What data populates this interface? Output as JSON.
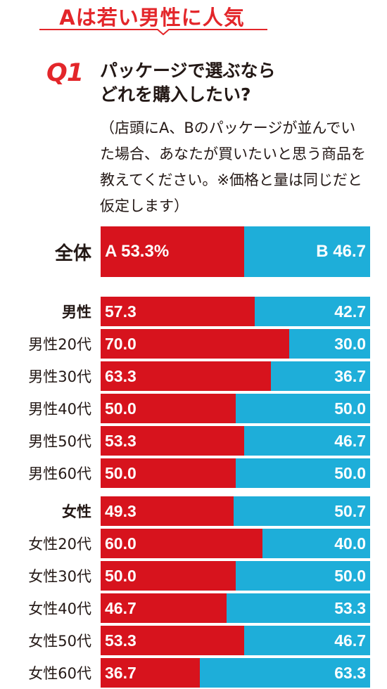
{
  "headline": "Aは若い男性に人気",
  "question": {
    "number": "Q1",
    "line1": "パッケージで選ぶなら",
    "line2": "どれを購入したい?",
    "note_lines": [
      "（店頭にA、Bのパッケージが並んでい",
      "た場合、あなたが買いたいと思う商品を",
      "教えてください。※価格と量は同じだと",
      "仮定します）"
    ]
  },
  "colors": {
    "a": "#d7131d",
    "b": "#1eaed9",
    "accent": "#e3262a"
  },
  "chart_data": {
    "type": "bar",
    "orientation": "horizontal-stacked-100",
    "categories": [
      "全体",
      "男性",
      "男性20代",
      "男性30代",
      "男性40代",
      "男性50代",
      "男性60代",
      "女性",
      "女性20代",
      "女性30代",
      "女性40代",
      "女性50代",
      "女性60代"
    ],
    "series": [
      {
        "name": "A",
        "values": [
          53.3,
          57.3,
          70.0,
          63.3,
          50.0,
          53.3,
          50.0,
          49.3,
          60.0,
          50.0,
          46.7,
          53.3,
          36.7
        ]
      },
      {
        "name": "B",
        "values": [
          46.7,
          42.7,
          30.0,
          36.7,
          50.0,
          46.7,
          50.0,
          50.7,
          40.0,
          50.0,
          53.3,
          46.7,
          63.3
        ]
      }
    ],
    "a_labels": [
      "A 53.3%",
      "57.3",
      "70.0",
      "63.3",
      "50.0",
      "53.3",
      "50.0",
      "49.3",
      "60.0",
      "50.0",
      "46.7",
      "53.3",
      "36.7"
    ],
    "b_labels": [
      "B 46.7",
      "42.7",
      "30.0",
      "36.7",
      "50.0",
      "46.7",
      "50.0",
      "50.7",
      "40.0",
      "50.0",
      "53.3",
      "46.7",
      "63.3"
    ],
    "xlim": [
      0,
      100
    ]
  }
}
